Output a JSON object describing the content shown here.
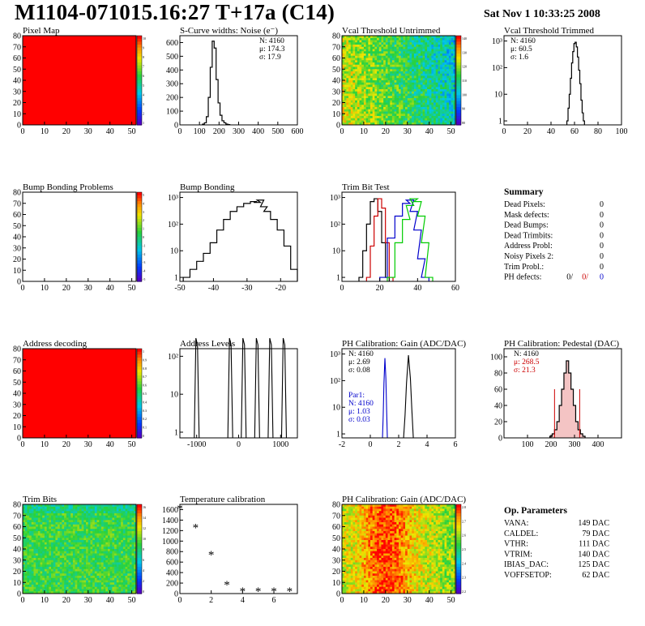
{
  "header": {
    "title": "M1104-071015.16:27 T+17a (C14)",
    "date": "Sat Nov  1 10:33:25 2008"
  },
  "colors": {
    "red_fill": "#ff0000",
    "blue": "#0000cc",
    "red": "#cc0000",
    "green": "#00cc00",
    "black": "#000000"
  },
  "chart_data": [
    {
      "id": "pixel-map",
      "type": "heatmap",
      "title": "Pixel Map",
      "xlim": [
        0,
        52
      ],
      "ylim": [
        0,
        80
      ],
      "xticks": [
        "0",
        "10",
        "20",
        "30",
        "40",
        "50"
      ],
      "yticks": [
        "0",
        "10",
        "20",
        "30",
        "40",
        "50",
        "60",
        "70",
        "80"
      ],
      "fill": "uniform-red",
      "zticks": [
        "10",
        "9",
        "8",
        "7",
        "6",
        "5",
        "4",
        "3",
        "2",
        "1"
      ]
    },
    {
      "id": "scurve-widths",
      "type": "bar",
      "title": "S-Curve widths: Noise (e⁻)",
      "xlim": [
        0,
        600
      ],
      "ylim": [
        0,
        650
      ],
      "xticks": [
        "0",
        "100",
        "200",
        "300",
        "400",
        "500",
        "600"
      ],
      "yticks": [
        "0",
        "100",
        "200",
        "300",
        "400",
        "500",
        "600"
      ],
      "stats": [
        "N: 4160",
        "μ: 174.3",
        "σ: 17.9"
      ],
      "series": [
        {
          "x": [
            120,
            130,
            140,
            150,
            160,
            170,
            180,
            190,
            200,
            210,
            220,
            230,
            240,
            250
          ],
          "values": [
            5,
            15,
            60,
            200,
            420,
            610,
            560,
            330,
            160,
            70,
            30,
            15,
            5,
            2
          ]
        }
      ]
    },
    {
      "id": "vcal-untrimmed",
      "type": "heatmap",
      "title": "Vcal Threshold Untrimmed",
      "xlim": [
        0,
        52
      ],
      "ylim": [
        0,
        80
      ],
      "xticks": [
        "0",
        "10",
        "20",
        "30",
        "40",
        "50"
      ],
      "yticks": [
        "0",
        "10",
        "20",
        "30",
        "40",
        "50",
        "60",
        "70",
        "80"
      ],
      "fill": "gradient-green-to-blue",
      "zticks": [
        "140",
        "130",
        "120",
        "110",
        "100",
        "90",
        "80"
      ]
    },
    {
      "id": "vcal-trimmed",
      "type": "line",
      "title": "Vcal Threshold Trimmed",
      "xlim": [
        0,
        100
      ],
      "log_y": true,
      "xticks": [
        "0",
        "20",
        "40",
        "60",
        "80",
        "100"
      ],
      "yticks": [
        "1",
        "10",
        "10²",
        "10³"
      ],
      "stats": [
        "N: 4160",
        "μ: 60.5",
        "σ:  1.6"
      ],
      "series": [
        {
          "x": [
            54,
            55,
            56,
            57,
            58,
            59,
            60,
            61,
            62,
            63,
            64,
            65,
            66,
            67,
            68
          ],
          "values": [
            1,
            3,
            10,
            40,
            150,
            400,
            800,
            900,
            600,
            250,
            80,
            25,
            6,
            2,
            1
          ]
        }
      ]
    },
    {
      "id": "bump-bonding-problems",
      "type": "heatmap",
      "title": "Bump Bonding Problems",
      "xlim": [
        0,
        52
      ],
      "ylim": [
        0,
        80
      ],
      "xticks": [
        "0",
        "10",
        "20",
        "30",
        "40",
        "50"
      ],
      "yticks": [
        "0",
        "10",
        "20",
        "30",
        "40",
        "50",
        "60",
        "70",
        "80"
      ],
      "fill": "empty",
      "zticks": [
        "5",
        "4",
        "3",
        "2",
        "1",
        "0",
        "-1",
        "-2",
        "-3",
        "-4",
        "-5"
      ]
    },
    {
      "id": "bump-bonding",
      "type": "line",
      "title": "Bump Bonding",
      "xlim": [
        -50,
        -15
      ],
      "log_y": true,
      "xticks": [
        "-50",
        "-40",
        "-30",
        "-20"
      ],
      "yticks": [
        "1",
        "10",
        "10²",
        "10³"
      ],
      "series": [
        {
          "x": [
            -48,
            -46,
            -44,
            -42,
            -40,
            -38,
            -36,
            -34,
            -32,
            -30,
            -28,
            -27,
            -26,
            -25,
            -24,
            -22,
            -20,
            -18,
            -16
          ],
          "values": [
            1,
            2,
            4,
            8,
            20,
            60,
            150,
            300,
            450,
            600,
            700,
            650,
            800,
            450,
            300,
            150,
            60,
            15,
            2
          ]
        }
      ]
    },
    {
      "id": "trim-bit-test",
      "type": "line",
      "title": "Trim Bit Test",
      "xlim": [
        0,
        60
      ],
      "log_y": true,
      "xticks": [
        "0",
        "20",
        "40",
        "60"
      ],
      "yticks": [
        "1",
        "10",
        "10²",
        "10³"
      ],
      "series": [
        {
          "color": "black",
          "x": [
            10,
            12,
            14,
            16,
            18,
            20,
            22,
            24
          ],
          "values": [
            1,
            10,
            100,
            700,
            900,
            300,
            20,
            1
          ]
        },
        {
          "color": "red",
          "x": [
            14,
            16,
            18,
            20,
            22,
            24,
            26
          ],
          "values": [
            1,
            15,
            200,
            900,
            400,
            20,
            1
          ]
        },
        {
          "color": "blue",
          "x": [
            22,
            26,
            30,
            34,
            36,
            38,
            40,
            42,
            44
          ],
          "values": [
            1,
            30,
            200,
            600,
            800,
            300,
            60,
            5,
            1
          ]
        },
        {
          "color": "green",
          "x": [
            26,
            30,
            34,
            36,
            38,
            40,
            42,
            44,
            46
          ],
          "values": [
            1,
            20,
            150,
            500,
            900,
            700,
            200,
            20,
            1
          ]
        }
      ]
    },
    {
      "id": "address-decoding",
      "type": "heatmap",
      "title": "Address decoding",
      "xlim": [
        0,
        52
      ],
      "ylim": [
        0,
        80
      ],
      "xticks": [
        "0",
        "10",
        "20",
        "30",
        "40",
        "50"
      ],
      "yticks": [
        "0",
        "10",
        "20",
        "30",
        "40",
        "50",
        "60",
        "70",
        "80"
      ],
      "fill": "uniform-red",
      "zticks": [
        "1",
        "0.9",
        "0.8",
        "0.7",
        "0.6",
        "0.5",
        "0.4",
        "0.3",
        "0.2",
        "0.1",
        "0"
      ]
    },
    {
      "id": "address-levels",
      "type": "line",
      "title": "Address Levels",
      "xlim": [
        -1400,
        1400
      ],
      "log_y": true,
      "xticks": [
        "-1000",
        "0",
        "1000"
      ],
      "yticks": [
        "1",
        "10",
        "10²"
      ],
      "series": [
        {
          "peaks": [
            -980,
            -180,
            140,
            460,
            780,
            1100
          ]
        }
      ]
    },
    {
      "id": "ph-gain",
      "type": "line",
      "title": "PH Calibration: Gain (ADC/DAC)",
      "xlim": [
        -2,
        6
      ],
      "log_y": true,
      "xticks": [
        "-2",
        "0",
        "2",
        "4",
        "6"
      ],
      "yticks": [
        "1",
        "10",
        "10²",
        "10³"
      ],
      "stats": [
        "N: 4160",
        "μ: 2.69",
        "σ: 0.08"
      ],
      "stats2": [
        "Par1:",
        "N: 4160",
        "μ: 1.03",
        "σ: 0.03"
      ],
      "series": [
        {
          "color": "blue",
          "peak": 1.03,
          "height": 700
        },
        {
          "color": "black",
          "peak": 2.69,
          "height": 900
        }
      ]
    },
    {
      "id": "ph-pedestal",
      "type": "bar",
      "title": "PH Calibration: Pedestal (DAC)",
      "xlim": [
        0,
        500
      ],
      "ylim": [
        0,
        110
      ],
      "xticks": [
        "100",
        "200",
        "300",
        "400"
      ],
      "yticks": [
        "0",
        "20",
        "40",
        "60",
        "80",
        "100"
      ],
      "stats": [
        "N: 4160",
        "μ: 268.5",
        "σ: 21.3"
      ],
      "series": [
        {
          "x": [
            200,
            210,
            220,
            230,
            240,
            250,
            260,
            270,
            280,
            290,
            300,
            310,
            320,
            330,
            340
          ],
          "values": [
            2,
            5,
            10,
            20,
            40,
            60,
            80,
            95,
            80,
            60,
            40,
            20,
            10,
            5,
            2
          ]
        }
      ],
      "markers": [
        215,
        322
      ]
    },
    {
      "id": "summary",
      "type": "table",
      "title": "Summary",
      "rows": [
        {
          "label": "Dead Pixels:",
          "value": "0"
        },
        {
          "label": "Mask defects:",
          "value": "0"
        },
        {
          "label": "Dead Bumps:",
          "value": "0"
        },
        {
          "label": "Dead Trimbits:",
          "value": "0"
        },
        {
          "label": "Address Probl:",
          "value": "0"
        },
        {
          "label": "Noisy Pixels 2:",
          "value": "0"
        },
        {
          "label": "Trim Probl.:",
          "value": "0"
        }
      ],
      "ph_defects": {
        "label": "PH defects:",
        "values": [
          "0/",
          "0/",
          "0"
        ]
      }
    },
    {
      "id": "trim-bits",
      "type": "heatmap",
      "title": "Trim Bits",
      "xlim": [
        0,
        52
      ],
      "ylim": [
        0,
        80
      ],
      "xticks": [
        "0",
        "10",
        "20",
        "30",
        "40",
        "50"
      ],
      "yticks": [
        "0",
        "10",
        "20",
        "30",
        "40",
        "50",
        "60",
        "70",
        "80"
      ],
      "fill": "noise-green",
      "zticks": [
        "16",
        "14",
        "12",
        "10",
        "8",
        "6",
        "4",
        "2",
        "0"
      ]
    },
    {
      "id": "temperature-calibration",
      "type": "scatter",
      "title": "Temperature calibration",
      "xlim": [
        0,
        7.5
      ],
      "ylim": [
        0,
        1700
      ],
      "xticks": [
        "0",
        "2",
        "4",
        "6"
      ],
      "yticks": [
        "0",
        "200",
        "400",
        "600",
        "800",
        "1000",
        "1200",
        "1400",
        "1600"
      ],
      "series": [
        {
          "x": [
            0,
            1,
            2,
            3,
            4,
            5,
            6,
            7
          ],
          "values": [
            1620,
            1260,
            740,
            170,
            50,
            50,
            50,
            50
          ]
        }
      ]
    },
    {
      "id": "ph-gain-map",
      "type": "heatmap",
      "title": "PH Calibration: Gain (ADC/DAC)",
      "xlim": [
        0,
        52
      ],
      "ylim": [
        0,
        80
      ],
      "xticks": [
        "0",
        "10",
        "20",
        "30",
        "40",
        "50"
      ],
      "yticks": [
        "0",
        "10",
        "20",
        "30",
        "40",
        "50",
        "60",
        "70",
        "80"
      ],
      "fill": "noise-red-yellow",
      "zticks": [
        "2.8",
        "2.7",
        "2.6",
        "2.5",
        "2.4",
        "2.3",
        "2.2"
      ]
    },
    {
      "id": "op-parameters",
      "type": "table",
      "title": "Op. Parameters",
      "rows": [
        {
          "label": "VANA:",
          "value": "149 DAC"
        },
        {
          "label": "CALDEL:",
          "value": "79 DAC"
        },
        {
          "label": "VTHR:",
          "value": "111 DAC"
        },
        {
          "label": "VTRIM:",
          "value": "140 DAC"
        },
        {
          "label": "IBIAS_DAC:",
          "value": "125 DAC"
        },
        {
          "label": "VOFFSETOP:",
          "value": "62 DAC"
        }
      ]
    }
  ]
}
